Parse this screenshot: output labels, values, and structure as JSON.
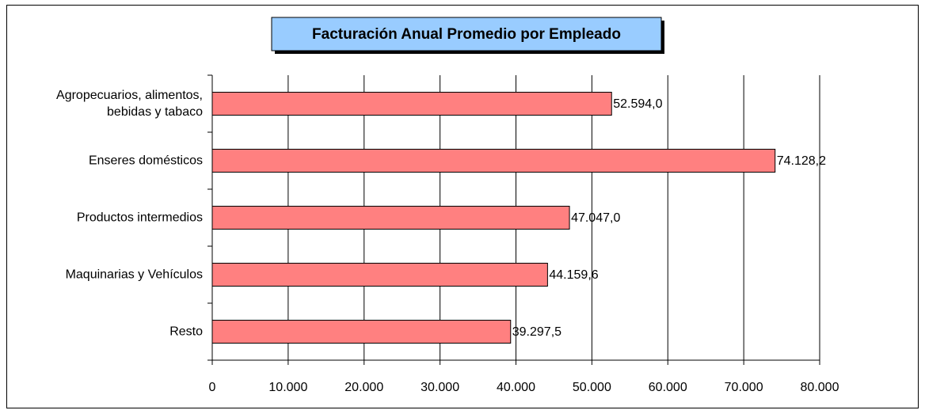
{
  "chart_data": {
    "type": "bar",
    "orientation": "horizontal",
    "title": "Facturación Anual Promedio por Empleado",
    "categories": [
      "Agropecuarios, alimentos, bebidas y tabaco",
      "Enseres domésticos",
      "Productos intermedios",
      "Maquinarias y Vehículos",
      "Resto"
    ],
    "values": [
      52594.0,
      74128.2,
      47047.0,
      44159.6,
      39297.5
    ],
    "value_labels": [
      "52.594,0",
      "74.128,2",
      "47.047,0",
      "44.159,6",
      "39.297,5"
    ],
    "color": "#ff8080",
    "xlim": [
      0,
      80000
    ],
    "xticks": [
      0,
      {
        "value": 10000,
        "label": "10.000"
      },
      {
        "value": 20000,
        "label": "20.000"
      },
      {
        "value": 30000,
        "label": "30.000"
      },
      {
        "value": 40000,
        "label": "40.000"
      },
      {
        "value": 50000,
        "label": "50.000"
      },
      {
        "value": 60000,
        "label": "60.000"
      },
      {
        "value": 70000,
        "label": "70.000"
      },
      {
        "value": 80000,
        "label": "80.000"
      }
    ],
    "grid": true
  }
}
